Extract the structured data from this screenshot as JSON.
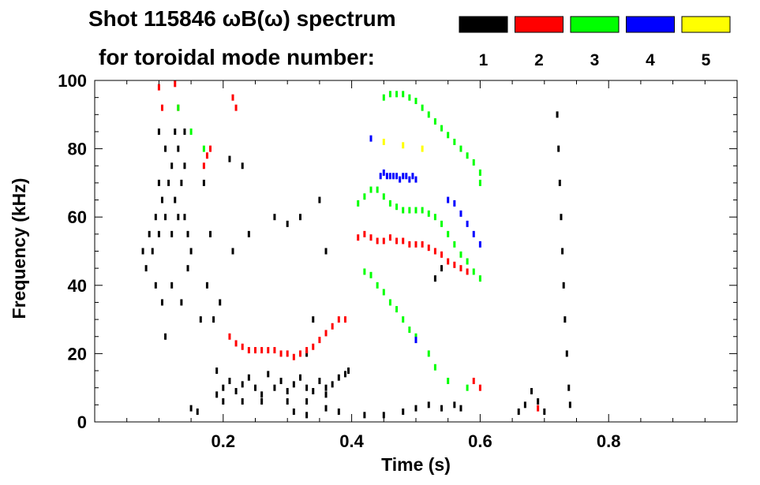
{
  "chart_data": {
    "type": "scatter",
    "title": "Shot 115846 ωB(ω) spectrum",
    "subtitle": "for toroidal mode number:",
    "xlabel": "Time (s)",
    "ylabel": "Frequency (kHz)",
    "xlim": [
      0.0,
      1.0
    ],
    "ylim": [
      0,
      100
    ],
    "x_ticks": [
      0.2,
      0.4,
      0.6,
      0.8
    ],
    "x_tick_labels": [
      "0.2",
      "0.4",
      "0.6",
      "0.8"
    ],
    "y_ticks": [
      0,
      20,
      40,
      60,
      80,
      100
    ],
    "y_tick_labels": [
      "0",
      "20",
      "40",
      "60",
      "80",
      "100"
    ],
    "grid": false,
    "legend_position": "top-right",
    "legend": [
      {
        "label": "1",
        "color": "#000000"
      },
      {
        "label": "2",
        "color": "#ff0000"
      },
      {
        "label": "3",
        "color": "#00ff00"
      },
      {
        "label": "4",
        "color": "#0000ff"
      },
      {
        "label": "5",
        "color": "#ffff00"
      }
    ],
    "series": [
      {
        "name": "1",
        "color": "#000000",
        "points": [
          [
            0.075,
            50
          ],
          [
            0.08,
            45
          ],
          [
            0.085,
            55
          ],
          [
            0.09,
            50
          ],
          [
            0.095,
            60
          ],
          [
            0.1,
            70
          ],
          [
            0.1,
            55
          ],
          [
            0.105,
            65
          ],
          [
            0.11,
            60
          ],
          [
            0.11,
            80
          ],
          [
            0.115,
            70
          ],
          [
            0.12,
            55
          ],
          [
            0.12,
            75
          ],
          [
            0.125,
            65
          ],
          [
            0.13,
            80
          ],
          [
            0.13,
            60
          ],
          [
            0.135,
            70
          ],
          [
            0.14,
            60
          ],
          [
            0.14,
            75
          ],
          [
            0.145,
            55
          ],
          [
            0.15,
            50
          ],
          [
            0.145,
            45
          ],
          [
            0.135,
            35
          ],
          [
            0.12,
            40
          ],
          [
            0.105,
            35
          ],
          [
            0.11,
            25
          ],
          [
            0.1,
            85
          ],
          [
            0.095,
            40
          ],
          [
            0.125,
            85
          ],
          [
            0.14,
            85
          ],
          [
            0.15,
            4
          ],
          [
            0.16,
            3
          ],
          [
            0.165,
            30
          ],
          [
            0.17,
            70
          ],
          [
            0.175,
            40
          ],
          [
            0.18,
            55
          ],
          [
            0.185,
            30
          ],
          [
            0.19,
            15
          ],
          [
            0.195,
            35
          ],
          [
            0.21,
            77
          ],
          [
            0.215,
            50
          ],
          [
            0.19,
            8
          ],
          [
            0.2,
            10
          ],
          [
            0.21,
            12
          ],
          [
            0.22,
            9
          ],
          [
            0.23,
            11
          ],
          [
            0.24,
            13
          ],
          [
            0.25,
            10
          ],
          [
            0.26,
            8
          ],
          [
            0.27,
            14
          ],
          [
            0.28,
            10
          ],
          [
            0.29,
            12
          ],
          [
            0.3,
            9
          ],
          [
            0.31,
            11
          ],
          [
            0.32,
            13
          ],
          [
            0.33,
            10
          ],
          [
            0.34,
            9
          ],
          [
            0.35,
            12
          ],
          [
            0.36,
            10
          ],
          [
            0.37,
            11
          ],
          [
            0.38,
            13
          ],
          [
            0.39,
            14
          ],
          [
            0.395,
            15
          ],
          [
            0.2,
            6
          ],
          [
            0.23,
            6
          ],
          [
            0.26,
            6
          ],
          [
            0.3,
            6
          ],
          [
            0.33,
            6
          ],
          [
            0.36,
            8
          ],
          [
            0.23,
            75
          ],
          [
            0.24,
            55
          ],
          [
            0.28,
            60
          ],
          [
            0.3,
            58
          ],
          [
            0.32,
            60
          ],
          [
            0.35,
            65
          ],
          [
            0.36,
            50
          ],
          [
            0.34,
            30
          ],
          [
            0.33,
            20
          ],
          [
            0.31,
            3
          ],
          [
            0.33,
            2
          ],
          [
            0.36,
            4
          ],
          [
            0.38,
            3
          ],
          [
            0.42,
            2
          ],
          [
            0.45,
            2
          ],
          [
            0.48,
            3
          ],
          [
            0.5,
            4
          ],
          [
            0.52,
            5
          ],
          [
            0.54,
            4
          ],
          [
            0.56,
            5
          ],
          [
            0.57,
            4
          ],
          [
            0.53,
            42
          ],
          [
            0.54,
            45
          ],
          [
            0.66,
            3
          ],
          [
            0.67,
            5
          ],
          [
            0.68,
            9
          ],
          [
            0.69,
            6
          ],
          [
            0.7,
            3
          ],
          [
            0.72,
            90
          ],
          [
            0.722,
            80
          ],
          [
            0.724,
            70
          ],
          [
            0.726,
            60
          ],
          [
            0.728,
            50
          ],
          [
            0.73,
            40
          ],
          [
            0.732,
            30
          ],
          [
            0.735,
            20
          ],
          [
            0.738,
            10
          ],
          [
            0.74,
            5
          ]
        ]
      },
      {
        "name": "2",
        "color": "#ff0000",
        "points": [
          [
            0.1,
            98
          ],
          [
            0.105,
            92
          ],
          [
            0.125,
            99
          ],
          [
            0.13,
            92
          ],
          [
            0.175,
            78
          ],
          [
            0.18,
            80
          ],
          [
            0.17,
            75
          ],
          [
            0.215,
            95
          ],
          [
            0.22,
            92
          ],
          [
            0.21,
            25
          ],
          [
            0.22,
            23
          ],
          [
            0.23,
            22
          ],
          [
            0.24,
            21
          ],
          [
            0.25,
            21
          ],
          [
            0.26,
            21
          ],
          [
            0.27,
            21
          ],
          [
            0.28,
            21
          ],
          [
            0.29,
            20
          ],
          [
            0.3,
            20
          ],
          [
            0.31,
            19
          ],
          [
            0.32,
            20
          ],
          [
            0.33,
            21
          ],
          [
            0.34,
            22
          ],
          [
            0.35,
            24
          ],
          [
            0.36,
            26
          ],
          [
            0.37,
            28
          ],
          [
            0.38,
            30
          ],
          [
            0.39,
            30
          ],
          [
            0.41,
            54
          ],
          [
            0.42,
            55
          ],
          [
            0.43,
            54
          ],
          [
            0.44,
            53
          ],
          [
            0.45,
            53
          ],
          [
            0.46,
            54
          ],
          [
            0.47,
            53
          ],
          [
            0.48,
            53
          ],
          [
            0.49,
            52
          ],
          [
            0.5,
            52
          ],
          [
            0.51,
            52
          ],
          [
            0.52,
            51
          ],
          [
            0.53,
            50
          ],
          [
            0.54,
            49
          ],
          [
            0.55,
            47
          ],
          [
            0.56,
            46
          ],
          [
            0.57,
            45
          ],
          [
            0.58,
            44
          ],
          [
            0.59,
            12
          ],
          [
            0.6,
            10
          ],
          [
            0.69,
            4
          ]
        ]
      },
      {
        "name": "3",
        "color": "#00ff00",
        "points": [
          [
            0.13,
            92
          ],
          [
            0.15,
            85
          ],
          [
            0.17,
            80
          ],
          [
            0.41,
            64
          ],
          [
            0.42,
            66
          ],
          [
            0.43,
            68
          ],
          [
            0.44,
            68
          ],
          [
            0.45,
            66
          ],
          [
            0.46,
            64
          ],
          [
            0.47,
            63
          ],
          [
            0.48,
            62
          ],
          [
            0.49,
            62
          ],
          [
            0.5,
            62
          ],
          [
            0.51,
            62
          ],
          [
            0.52,
            61
          ],
          [
            0.53,
            60
          ],
          [
            0.54,
            58
          ],
          [
            0.55,
            55
          ],
          [
            0.56,
            52
          ],
          [
            0.57,
            49
          ],
          [
            0.58,
            47
          ],
          [
            0.59,
            44
          ],
          [
            0.6,
            42
          ],
          [
            0.45,
            95
          ],
          [
            0.46,
            96
          ],
          [
            0.47,
            96
          ],
          [
            0.48,
            96
          ],
          [
            0.49,
            95
          ],
          [
            0.5,
            94
          ],
          [
            0.51,
            92
          ],
          [
            0.52,
            90
          ],
          [
            0.53,
            88
          ],
          [
            0.54,
            86
          ],
          [
            0.55,
            84
          ],
          [
            0.56,
            82
          ],
          [
            0.57,
            80
          ],
          [
            0.58,
            78
          ],
          [
            0.59,
            76
          ],
          [
            0.6,
            73
          ],
          [
            0.6,
            70
          ],
          [
            0.42,
            44
          ],
          [
            0.43,
            43
          ],
          [
            0.44,
            40
          ],
          [
            0.45,
            38
          ],
          [
            0.46,
            35
          ],
          [
            0.47,
            33
          ],
          [
            0.48,
            30
          ],
          [
            0.49,
            27
          ],
          [
            0.5,
            25
          ],
          [
            0.52,
            20
          ],
          [
            0.53,
            16
          ],
          [
            0.55,
            12
          ],
          [
            0.58,
            10
          ]
        ]
      },
      {
        "name": "4",
        "color": "#0000ff",
        "points": [
          [
            0.43,
            83
          ],
          [
            0.445,
            72
          ],
          [
            0.45,
            73
          ],
          [
            0.455,
            72
          ],
          [
            0.46,
            72
          ],
          [
            0.465,
            72
          ],
          [
            0.47,
            72
          ],
          [
            0.475,
            71
          ],
          [
            0.48,
            72
          ],
          [
            0.485,
            72
          ],
          [
            0.49,
            71
          ],
          [
            0.495,
            72
          ],
          [
            0.5,
            71
          ],
          [
            0.55,
            65
          ],
          [
            0.56,
            64
          ],
          [
            0.57,
            61
          ],
          [
            0.58,
            58
          ],
          [
            0.59,
            55
          ],
          [
            0.6,
            52
          ],
          [
            0.5,
            24
          ]
        ]
      },
      {
        "name": "5",
        "color": "#ffff00",
        "points": [
          [
            0.45,
            82
          ],
          [
            0.48,
            81
          ],
          [
            0.51,
            80
          ]
        ]
      }
    ]
  }
}
